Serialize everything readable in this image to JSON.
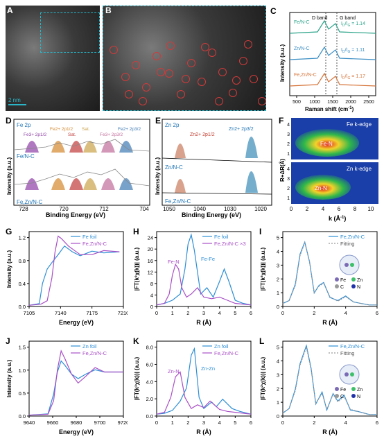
{
  "panels": {
    "A": {
      "label": "A",
      "scale": "2 nm"
    },
    "B": {
      "label": "B"
    },
    "C": {
      "label": "C",
      "xlabel": "Raman shift (cm",
      "xlabel_sup": "-1",
      "xlabel_end": ")",
      "ylabel": "Intensity (a.u.)",
      "band_D": "D band",
      "band_G": "G band",
      "xticks": [
        "500",
        "1000",
        "1500",
        "2000",
        "2500"
      ],
      "series": [
        {
          "name": "Fe/N-C",
          "ratio": "I",
          "ratio_sub": "D",
          "ratio_mid": "/I",
          "ratio_sub2": "G",
          "ratio_val": " = 1.14",
          "color": "#2aa388"
        },
        {
          "name": "Zn/N-C",
          "ratio": "I",
          "ratio_sub": "D",
          "ratio_mid": "/I",
          "ratio_sub2": "G",
          "ratio_val": " = 1.11",
          "color": "#3b8ec4"
        },
        {
          "name": "Fe,Zn/N-C",
          "ratio": "I",
          "ratio_sub": "D",
          "ratio_mid": "/I",
          "ratio_sub2": "G",
          "ratio_val": " = 1.17",
          "color": "#d6743a"
        }
      ]
    },
    "D": {
      "label": "D",
      "title": "Fe 2p",
      "xlabel": "Binding Energy (eV)",
      "ylabel": "Intensity (a.u.)",
      "xticks": [
        "728",
        "720",
        "712",
        "704"
      ],
      "peaks": [
        "Fe3+ 2p1/2",
        "Fe2+ 2p1/2",
        "Sat.",
        "Sat.",
        "Fe3+ 2p3/2",
        "Fe2+ 2p3/2"
      ],
      "samples": [
        "Fe/N-C",
        "Fe,Zn/N-C"
      ]
    },
    "E": {
      "label": "E",
      "title": "Zn 2p",
      "xlabel": "Binding Energy (eV)",
      "ylabel": "Intensity (a.u.)",
      "xticks": [
        "1050",
        "1040",
        "1030",
        "1020"
      ],
      "peaks": [
        "Zn2+ 2p1/2",
        "Zn2+ 2p3/2"
      ],
      "samples": [
        "Zn/N-C",
        "Fe,Zn/N-C"
      ]
    },
    "F": {
      "label": "F",
      "ylabel": "R+ΔR(Å)",
      "xlabel": "k (Å",
      "xlabel_sup": "-1",
      "xlabel_end": ")",
      "top_title": "Fe k-edge",
      "top_label": "Fe-N",
      "bottom_title": "Zn k-edge",
      "bottom_label": "Zn-N",
      "xticks": [
        "0",
        "2",
        "4",
        "6",
        "8",
        "10"
      ],
      "yticks": [
        "1",
        "2",
        "3",
        "4"
      ]
    },
    "G": {
      "label": "G",
      "xlabel": "Energy (eV)",
      "ylabel": "Intensity (a.u.)",
      "xticks": [
        "7105",
        "7140",
        "7175",
        "7210"
      ],
      "yticks": [
        "0.0",
        "0.4",
        "0.8",
        "1.2"
      ],
      "legend": [
        "Fe foil",
        "Fe,Zn/N-C"
      ]
    },
    "H": {
      "label": "H",
      "xlabel": "R (Å)",
      "ylabel": "|FT(k³χ(k))| (a.u.)",
      "xticks": [
        "0",
        "1",
        "2",
        "3",
        "4",
        "5",
        "6"
      ],
      "yticks": [
        "0",
        "4",
        "8",
        "12",
        "16",
        "20",
        "24"
      ],
      "legend": [
        "Fe foil",
        "Fe,Zn/N-C ×3"
      ],
      "ann1": "Fe-N",
      "ann2": "Fe-Fe"
    },
    "I": {
      "label": "I",
      "xlabel": "R (Å)",
      "ylabel": "|FT(k²χ(k))| (a.u.)",
      "xticks": [
        "0",
        "2",
        "4",
        "6"
      ],
      "yticks": [
        "0",
        "1",
        "2",
        "3",
        "4",
        "5"
      ],
      "legend": [
        "Fe,Zn/N-C",
        "Fitting"
      ],
      "atoms": [
        "Fe",
        "Zn",
        "C",
        "N"
      ]
    },
    "J": {
      "label": "J",
      "xlabel": "Energy (eV)",
      "ylabel": "Intensity (a.u.)",
      "xticks": [
        "9640",
        "9660",
        "9680",
        "9700",
        "9720"
      ],
      "yticks": [
        "0.0",
        "0.5",
        "1.0",
        "1.5"
      ],
      "legend": [
        "Zn foil",
        "Fe,Zn/N-C"
      ]
    },
    "K": {
      "label": "K",
      "xlabel": "R (Å)",
      "ylabel": "|FT(k³χ(k))| (a.u.)",
      "xticks": [
        "0",
        "1",
        "2",
        "3",
        "4",
        "5",
        "6"
      ],
      "yticks": [
        "0.0",
        "2.0",
        "4.0",
        "6.0",
        "8.0"
      ],
      "legend": [
        "Zn foil",
        "Fe,Zn/N-C"
      ],
      "ann1": "Zn-N",
      "ann2": "Zn-Zn"
    },
    "L": {
      "label": "L",
      "xlabel": "R (Å)",
      "ylabel": "|FT(k²χ(k))| (a.u.)",
      "xticks": [
        "0",
        "2",
        "4",
        "6"
      ],
      "yticks": [
        "0",
        "1",
        "2",
        "3",
        "4",
        "5"
      ],
      "legend": [
        "Fe,Zn/N-C",
        "Fitting"
      ],
      "atoms": [
        "Fe",
        "Zn",
        "C",
        "N"
      ]
    }
  },
  "chart_data": [
    {
      "type": "line",
      "panel": "G",
      "xlabel": "Energy (eV)",
      "ylabel": "Intensity (a.u.)",
      "xlim": [
        7095,
        7215
      ],
      "ylim": [
        0,
        1.3
      ],
      "series": [
        {
          "name": "Fe foil",
          "x": [
            7095,
            7108,
            7112,
            7118,
            7125,
            7132,
            7140,
            7150,
            7160,
            7175,
            7190,
            7210
          ],
          "y": [
            0.02,
            0.05,
            0.4,
            0.65,
            0.78,
            0.9,
            1.05,
            0.95,
            0.88,
            0.96,
            0.93,
            0.95
          ]
        },
        {
          "name": "Fe,Zn/N-C",
          "x": [
            7095,
            7110,
            7118,
            7124,
            7128,
            7132,
            7136,
            7145,
            7160,
            7175,
            7190,
            7210
          ],
          "y": [
            0.02,
            0.04,
            0.1,
            0.5,
            0.95,
            1.22,
            1.18,
            1.05,
            0.9,
            0.9,
            0.97,
            0.95
          ]
        }
      ]
    },
    {
      "type": "line",
      "panel": "H",
      "xlabel": "R (Å)",
      "xlim": [
        0,
        6
      ],
      "ylim": [
        0,
        24
      ],
      "series": [
        {
          "name": "Fe foil",
          "x": [
            0,
            0.5,
            1,
            1.5,
            1.8,
            2.0,
            2.2,
            2.4,
            2.8,
            3.2,
            3.6,
            4.0,
            4.3,
            4.6,
            5.0,
            5.5,
            6
          ],
          "y": [
            0.5,
            1,
            2,
            4,
            12,
            20,
            23,
            18,
            4,
            6,
            3,
            8,
            12,
            8,
            2,
            1,
            0.5
          ]
        },
        {
          "name": "Fe,Zn/N-C ×3",
          "x": [
            0,
            0.5,
            0.8,
            1.0,
            1.2,
            1.4,
            1.6,
            1.9,
            2.2,
            2.6,
            3.0,
            3.5,
            4.0,
            4.5,
            5.0,
            6
          ],
          "y": [
            0.5,
            1,
            4,
            10,
            13.5,
            12,
            6,
            3,
            4,
            6,
            3,
            2.5,
            3,
            2,
            1,
            0.5
          ]
        }
      ]
    },
    {
      "type": "line",
      "panel": "I",
      "xlabel": "R (Å)",
      "xlim": [
        0,
        6
      ],
      "ylim": [
        0,
        5
      ],
      "series": [
        {
          "name": "Fe,Zn/N-C",
          "x": [
            0,
            0.4,
            0.8,
            1.1,
            1.4,
            1.7,
            2.0,
            2.3,
            2.6,
            3.0,
            3.5,
            4.0,
            4.5,
            5.0,
            5.5,
            6
          ],
          "y": [
            0.2,
            0.4,
            1.5,
            3.5,
            4.3,
            3.0,
            0.9,
            1.4,
            1.6,
            0.6,
            0.4,
            0.7,
            0.3,
            0.2,
            0.1,
            0.1
          ]
        },
        {
          "name": "Fitting",
          "x": [
            0,
            0.4,
            0.8,
            1.1,
            1.4,
            1.7,
            2.0,
            2.3,
            2.6,
            3.0,
            3.5,
            4.0,
            4.5,
            5.0,
            5.5,
            6
          ],
          "y": [
            0.2,
            0.4,
            1.4,
            3.4,
            4.25,
            3.0,
            0.95,
            1.35,
            1.55,
            0.65,
            0.35,
            0.65,
            0.3,
            0.2,
            0.1,
            0.1
          ]
        }
      ]
    },
    {
      "type": "line",
      "panel": "J",
      "xlabel": "Energy (eV)",
      "xlim": [
        9630,
        9730
      ],
      "ylim": [
        0,
        1.7
      ],
      "series": [
        {
          "name": "Zn foil",
          "x": [
            9630,
            9650,
            9656,
            9660,
            9664,
            9668,
            9675,
            9682,
            9690,
            9700,
            9710,
            9730
          ],
          "y": [
            0.02,
            0.05,
            0.5,
            1.0,
            1.25,
            1.15,
            0.95,
            0.85,
            0.95,
            1.05,
            1.0,
            1.0
          ]
        },
        {
          "name": "Fe,Zn/N-C",
          "x": [
            9630,
            9650,
            9656,
            9660,
            9664,
            9668,
            9675,
            9682,
            9690,
            9700,
            9710,
            9730
          ],
          "y": [
            0.02,
            0.04,
            0.35,
            1.05,
            1.48,
            1.3,
            0.95,
            0.75,
            0.9,
            1.1,
            1.0,
            1.0
          ]
        }
      ]
    },
    {
      "type": "line",
      "panel": "K",
      "xlabel": "R (Å)",
      "xlim": [
        0,
        6
      ],
      "ylim": [
        0,
        8
      ],
      "series": [
        {
          "name": "Zn foil",
          "x": [
            0,
            0.5,
            1.0,
            1.5,
            1.9,
            2.2,
            2.4,
            2.7,
            3.0,
            3.5,
            3.8,
            4.2,
            4.8,
            5.3,
            6
          ],
          "y": [
            0.2,
            0.3,
            0.6,
            1.6,
            3.0,
            6.5,
            7.2,
            2.0,
            0.8,
            1.5,
            1.0,
            1.8,
            0.8,
            0.5,
            0.2
          ]
        },
        {
          "name": "Fe,Zn/N-C",
          "x": [
            0,
            0.5,
            0.9,
            1.2,
            1.5,
            1.8,
            2.2,
            2.6,
            3.0,
            3.4,
            4.0,
            4.5,
            5.0,
            6
          ],
          "y": [
            0.2,
            0.4,
            2.0,
            4.2,
            4.7,
            2.0,
            0.8,
            1.2,
            0.9,
            1.6,
            0.7,
            0.5,
            0.4,
            0.2
          ]
        }
      ]
    },
    {
      "type": "line",
      "panel": "L",
      "xlabel": "R (Å)",
      "xlim": [
        0,
        6
      ],
      "ylim": [
        0,
        5
      ],
      "series": [
        {
          "name": "Fe,Zn/N-C",
          "x": [
            0,
            0.4,
            0.8,
            1.1,
            1.5,
            1.8,
            2.1,
            2.5,
            2.8,
            3.2,
            3.5,
            3.9,
            4.3,
            4.8,
            5.5,
            6
          ],
          "y": [
            0.2,
            0.5,
            1.8,
            3.5,
            4.7,
            3.2,
            0.8,
            1.6,
            0.4,
            1.5,
            1.0,
            1.4,
            0.4,
            0.3,
            0.1,
            0.1
          ]
        },
        {
          "name": "Fitting",
          "x": [
            0,
            0.4,
            0.8,
            1.1,
            1.5,
            1.8,
            2.1,
            2.5,
            2.8,
            3.2,
            3.5,
            3.9,
            4.3,
            4.8,
            5.5,
            6
          ],
          "y": [
            0.2,
            0.5,
            1.7,
            3.4,
            4.6,
            3.1,
            0.85,
            1.5,
            0.45,
            1.45,
            0.95,
            1.3,
            0.45,
            0.3,
            0.1,
            0.1
          ]
        }
      ]
    }
  ]
}
